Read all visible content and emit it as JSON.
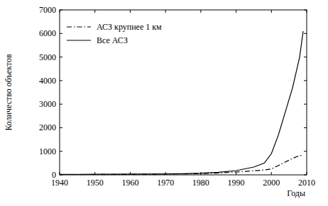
{
  "chart_data": {
    "type": "line",
    "x_label": "Годы",
    "y_label": "Количество объектов",
    "x": [
      1940,
      1945,
      1950,
      1955,
      1960,
      1965,
      1970,
      1975,
      1980,
      1985,
      1990,
      1995,
      1998,
      2000,
      2002,
      2004,
      2006,
      2008,
      2009
    ],
    "series": [
      {
        "name": "АСЗ крупнее 1 км",
        "color": "#000000",
        "line_style": "dashdot",
        "values": [
          10,
          12,
          15,
          18,
          22,
          26,
          30,
          40,
          55,
          80,
          120,
          170,
          210,
          250,
          400,
          550,
          700,
          820,
          830
        ]
      },
      {
        "name": "Все АСЗ",
        "color": "#000000",
        "line_style": "solid",
        "values": [
          20,
          22,
          25,
          28,
          32,
          36,
          40,
          50,
          70,
          110,
          180,
          330,
          500,
          900,
          1700,
          2700,
          3700,
          5000,
          6100
        ]
      }
    ],
    "xlim": [
      1940,
      2010
    ],
    "xticks": [
      1940,
      1950,
      1960,
      1970,
      1980,
      1990,
      2000,
      2010
    ],
    "ylim": [
      0,
      7000
    ],
    "yticks": [
      0,
      1000,
      2000,
      3000,
      4000,
      5000,
      6000,
      7000
    ],
    "legend": "upper left",
    "grid": false
  }
}
